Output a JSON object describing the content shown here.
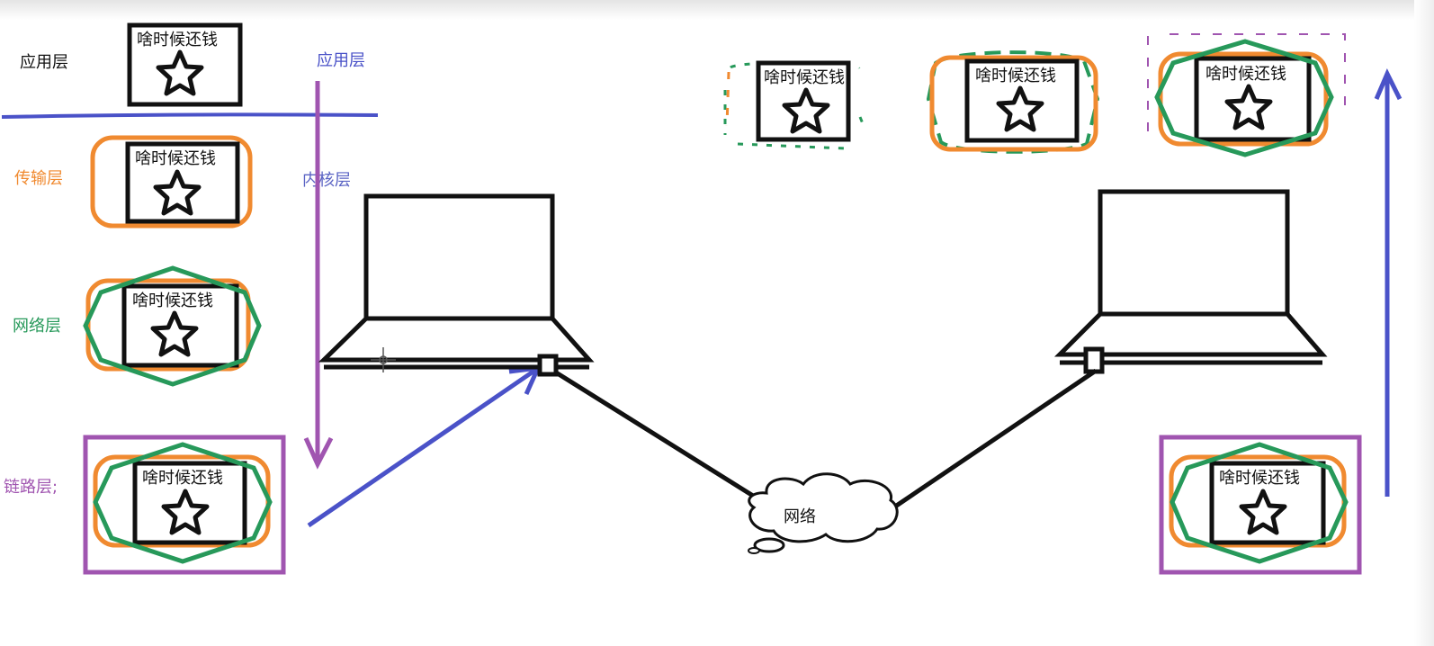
{
  "colors": {
    "black": "#111111",
    "app_blue": "#4a52c8",
    "kernel_blue": "#5a63c4",
    "transport_orange": "#f08a30",
    "network_green": "#27995a",
    "link_purple": "#a055b0"
  },
  "layers": {
    "application": "应用层",
    "transport": "传输层",
    "network": "网络层",
    "link": "链路层;"
  },
  "side_labels": {
    "application": "应用层",
    "kernel": "内核层"
  },
  "packet_text": "啥时候还钱",
  "network_label": "网络",
  "icons": {
    "packet": "star-icon",
    "computer": "laptop-icon",
    "network": "cloud-icon"
  }
}
